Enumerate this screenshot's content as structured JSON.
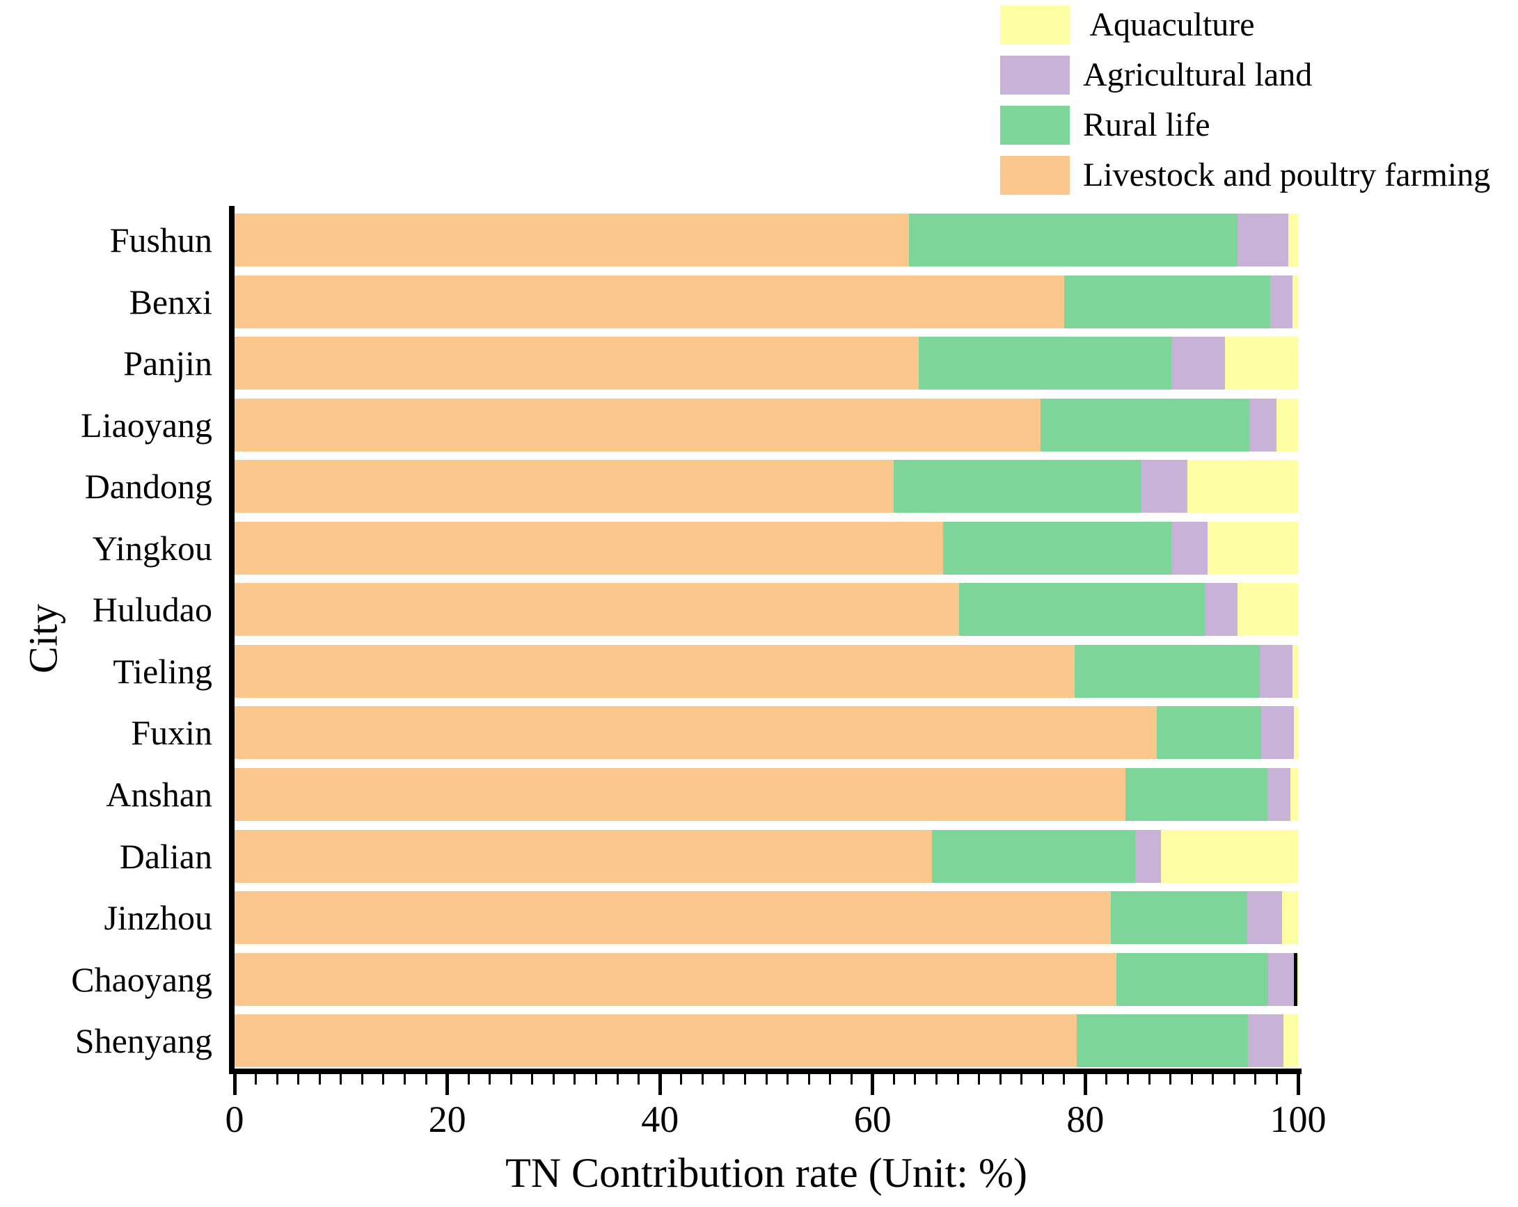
{
  "figure": {
    "background": "#FFFFFF",
    "text_color": "#000000"
  },
  "legend": {
    "items": [
      {
        "label": " Aquaculture",
        "series": "Aquaculture",
        "color": "#FDFDA4"
      },
      {
        "label": "Agricultural land",
        "series": "Agricultural land",
        "color": "#C9B2D8"
      },
      {
        "label": "Rural life",
        "series": "Rural life",
        "color": "#7ED59A"
      },
      {
        "label": "Livestock and poultry farming",
        "series": "Livestock and poultry farming",
        "color": "#FBC78D"
      }
    ]
  },
  "chart_data": {
    "type": "bar",
    "orientation": "horizontal",
    "stacked": true,
    "xlabel": "TN Contribution rate (Unit: %)",
    "ylabel": "City",
    "xlim": [
      0,
      100
    ],
    "x_major_ticks": [
      0,
      20,
      40,
      60,
      80,
      100
    ],
    "x_minor_tick_step": 2,
    "grid": false,
    "legend_position": "top-right",
    "categories_top_to_bottom": [
      "Fushun",
      "Benxi",
      "Panjin",
      "Liaoyang",
      "Dandong",
      "Yingkou",
      "Huludao",
      "Tieling",
      "Fuxin",
      "Anshan",
      "Dalian",
      "Jinzhou",
      "Chaoyang",
      "Shenyang"
    ],
    "series": [
      {
        "name": "Livestock and poultry farming",
        "color": "#FBC78D",
        "values": [
          63.4,
          78.0,
          64.3,
          75.8,
          62.0,
          66.6,
          68.1,
          79.0,
          86.7,
          83.8,
          65.6,
          82.4,
          82.9,
          79.2
        ]
      },
      {
        "name": "Rural life",
        "color": "#7ED59A",
        "values": [
          30.9,
          19.4,
          23.8,
          19.6,
          23.3,
          21.5,
          23.1,
          17.4,
          9.8,
          13.3,
          19.1,
          12.8,
          14.3,
          16.1
        ]
      },
      {
        "name": "Agricultural land",
        "color": "#C9B2D8",
        "values": [
          4.8,
          2.1,
          5.0,
          2.6,
          4.3,
          3.4,
          3.1,
          3.1,
          3.1,
          2.2,
          2.4,
          3.3,
          2.4,
          3.3
        ]
      },
      {
        "name": "Aquaculture",
        "color": "#FDFDA4",
        "values": [
          0.9,
          0.5,
          6.9,
          2.0,
          10.4,
          8.5,
          5.7,
          0.5,
          0.4,
          0.7,
          12.9,
          1.5,
          0.4,
          1.4
        ]
      }
    ],
    "annotations": [
      {
        "category": "Chaoyang",
        "type": "bar-end-line",
        "color": "#000000"
      }
    ]
  }
}
